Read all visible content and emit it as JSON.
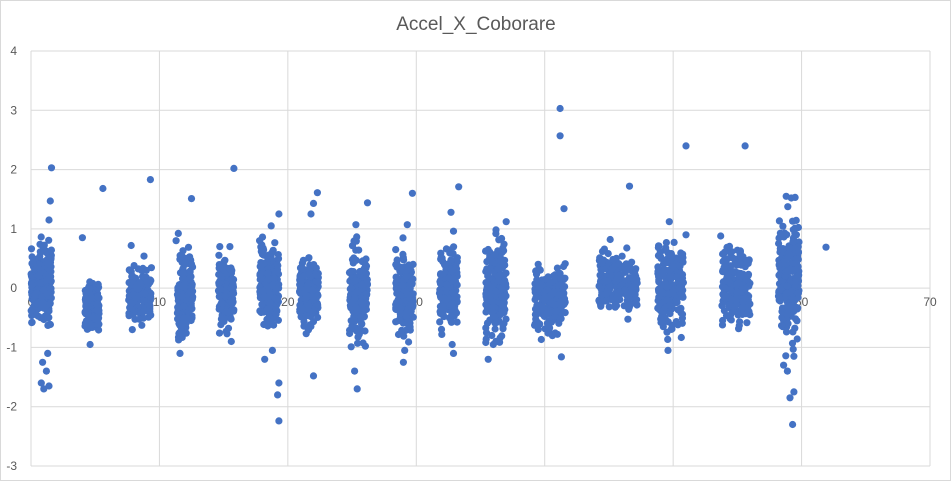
{
  "chart_data": {
    "type": "scatter",
    "title": "Accel_X_Coborare",
    "xlabel": "",
    "ylabel": "",
    "xlim": [
      0,
      70
    ],
    "ylim": [
      -3,
      4
    ],
    "xticks": [
      "0",
      "10",
      "20",
      "30",
      "40",
      "50",
      "60",
      "70"
    ],
    "yticks": [
      "-3",
      "-2",
      "-1",
      "0",
      "1",
      "2",
      "3",
      "4"
    ],
    "grid": true,
    "legend": "none",
    "marker_color": "#4472C4",
    "series": [
      {
        "clusters": [
          {
            "x": [
              0.0,
              1.6
            ],
            "y": [
              -0.8,
              0.95
            ],
            "n": 260
          },
          {
            "x": [
              4.2,
              5.3
            ],
            "y": [
              -0.95,
              0.35
            ],
            "n": 140
          },
          {
            "x": [
              7.6,
              9.4
            ],
            "y": [
              -0.75,
              0.5
            ],
            "n": 150
          },
          {
            "x": [
              11.4,
              12.6
            ],
            "y": [
              -1.1,
              0.95
            ],
            "n": 180
          },
          {
            "x": [
              14.6,
              15.8
            ],
            "y": [
              -0.9,
              0.7
            ],
            "n": 160
          },
          {
            "x": [
              17.8,
              19.3
            ],
            "y": [
              -1.0,
              1.1
            ],
            "n": 180
          },
          {
            "x": [
              20.9,
              22.4
            ],
            "y": [
              -0.9,
              0.7
            ],
            "n": 200
          },
          {
            "x": [
              24.8,
              26.2
            ],
            "y": [
              -1.2,
              1.0
            ],
            "n": 180
          },
          {
            "x": [
              28.4,
              29.8
            ],
            "y": [
              -1.1,
              0.9
            ],
            "n": 160
          },
          {
            "x": [
              31.8,
              33.2
            ],
            "y": [
              -0.9,
              0.95
            ],
            "n": 170
          },
          {
            "x": [
              35.4,
              37.0
            ],
            "y": [
              -1.2,
              1.1
            ],
            "n": 200
          },
          {
            "x": [
              39.2,
              41.6
            ],
            "y": [
              -1.0,
              0.65
            ],
            "n": 180
          },
          {
            "x": [
              44.2,
              47.2
            ],
            "y": [
              -0.7,
              0.85
            ],
            "n": 180
          },
          {
            "x": [
              48.8,
              50.8
            ],
            "y": [
              -1.05,
              1.1
            ],
            "n": 200
          },
          {
            "x": [
              53.8,
              56.0
            ],
            "y": [
              -0.8,
              0.9
            ],
            "n": 220
          },
          {
            "x": [
              58.2,
              59.8
            ],
            "y": [
              -1.2,
              1.5
            ],
            "n": 220
          }
        ],
        "points": [
          [
            1.6,
            2.03
          ],
          [
            1.5,
            1.47
          ],
          [
            1.4,
            1.15
          ],
          [
            0.8,
            -1.6
          ],
          [
            1.0,
            -1.7
          ],
          [
            1.4,
            -1.65
          ],
          [
            1.2,
            -1.4
          ],
          [
            1.3,
            -1.1
          ],
          [
            0.9,
            -1.25
          ],
          [
            5.6,
            1.68
          ],
          [
            4.0,
            0.85
          ],
          [
            4.6,
            -0.95
          ],
          [
            9.3,
            1.83
          ],
          [
            7.8,
            0.72
          ],
          [
            8.8,
            0.54
          ],
          [
            12.5,
            1.51
          ],
          [
            11.3,
            0.8
          ],
          [
            11.6,
            -1.1
          ],
          [
            15.8,
            2.02
          ],
          [
            14.7,
            0.7
          ],
          [
            15.6,
            -0.9
          ],
          [
            19.3,
            1.25
          ],
          [
            18.7,
            1.05
          ],
          [
            17.8,
            0.8
          ],
          [
            19.3,
            -2.24
          ],
          [
            19.2,
            -1.8
          ],
          [
            19.3,
            -1.6
          ],
          [
            18.2,
            -1.2
          ],
          [
            18.8,
            -1.05
          ],
          [
            22.3,
            1.61
          ],
          [
            22.0,
            1.43
          ],
          [
            21.8,
            1.25
          ],
          [
            22.0,
            -1.48
          ],
          [
            26.2,
            1.44
          ],
          [
            25.3,
            1.07
          ],
          [
            25.4,
            -1.7
          ],
          [
            25.2,
            -1.4
          ],
          [
            29.7,
            1.6
          ],
          [
            29.3,
            1.07
          ],
          [
            28.4,
            0.65
          ],
          [
            29.0,
            -1.25
          ],
          [
            29.1,
            -1.05
          ],
          [
            33.3,
            1.71
          ],
          [
            32.7,
            1.28
          ],
          [
            32.9,
            0.96
          ],
          [
            32.9,
            -1.1
          ],
          [
            32.8,
            -0.95
          ],
          [
            37.0,
            1.12
          ],
          [
            36.2,
            0.92
          ],
          [
            35.6,
            -1.2
          ],
          [
            36.0,
            -0.95
          ],
          [
            41.2,
            3.03
          ],
          [
            41.2,
            2.57
          ],
          [
            41.5,
            1.34
          ],
          [
            41.3,
            -1.16
          ],
          [
            40.6,
            -0.8
          ],
          [
            46.6,
            1.72
          ],
          [
            45.1,
            0.82
          ],
          [
            44.5,
            0.62
          ],
          [
            51.0,
            2.4
          ],
          [
            49.7,
            1.12
          ],
          [
            49.6,
            -1.05
          ],
          [
            51.0,
            0.9
          ],
          [
            55.6,
            2.4
          ],
          [
            53.7,
            0.88
          ],
          [
            55.0,
            0.64
          ],
          [
            58.8,
            1.55
          ],
          [
            59.2,
            1.52
          ],
          [
            59.5,
            1.53
          ],
          [
            59.3,
            1.13
          ],
          [
            59.6,
            0.9
          ],
          [
            58.5,
            0.9
          ],
          [
            59.3,
            -2.3
          ],
          [
            59.1,
            -1.85
          ],
          [
            59.4,
            -1.75
          ],
          [
            58.9,
            -1.4
          ],
          [
            59.4,
            -1.15
          ],
          [
            58.6,
            -1.3
          ],
          [
            61.9,
            0.69
          ]
        ]
      }
    ]
  }
}
